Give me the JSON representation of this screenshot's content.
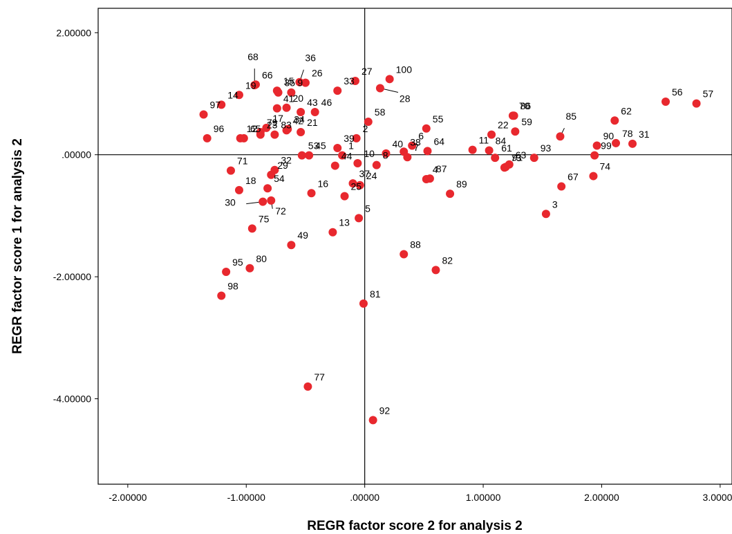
{
  "chart_data": {
    "type": "scatter",
    "title": "",
    "xlabel": "REGR factor score   2 for analysis 2",
    "ylabel": "REGR factor score   1 for analysis 2",
    "xlim": [
      -2.25,
      3.1
    ],
    "ylim": [
      -5.4,
      2.4
    ],
    "x_ticks": [
      -2,
      -1,
      0,
      1,
      2,
      3
    ],
    "y_ticks": [
      2,
      0,
      -2,
      -4
    ],
    "x_tick_labels": [
      "-2.00000",
      "-1.00000",
      ".00000",
      "1.00000",
      "2.00000",
      "3.00000"
    ],
    "y_tick_labels": [
      "2.00000",
      ".00000",
      "-2.00000",
      "-4.00000"
    ],
    "reference_lines": {
      "x": 0,
      "y": 0
    },
    "grid": false,
    "marker_color": "#e8282e",
    "points": [
      {
        "label": "1",
        "x": -0.19,
        "y": -0.01
      },
      {
        "label": "2",
        "x": -0.07,
        "y": 0.27
      },
      {
        "label": "3",
        "x": 1.53,
        "y": -0.97
      },
      {
        "label": "4",
        "x": 0.52,
        "y": -0.4
      },
      {
        "label": "5",
        "x": -0.05,
        "y": -1.04
      },
      {
        "label": "6",
        "x": 0.4,
        "y": 0.15
      },
      {
        "label": "7",
        "x": 0.36,
        "y": -0.04
      },
      {
        "label": "8",
        "x": 0.1,
        "y": -0.17
      },
      {
        "label": "9",
        "x": -0.62,
        "y": 1.02
      },
      {
        "label": "10",
        "x": -0.06,
        "y": -0.14
      },
      {
        "label": "11",
        "x": 0.91,
        "y": 0.08
      },
      {
        "label": "12",
        "x": -1.05,
        "y": 0.27
      },
      {
        "label": "13",
        "x": -0.27,
        "y": -1.27
      },
      {
        "label": "14",
        "x": -1.21,
        "y": 0.82
      },
      {
        "label": "15",
        "x": -0.74,
        "y": 1.05
      },
      {
        "label": "16",
        "x": -0.45,
        "y": -0.63
      },
      {
        "label": "17",
        "x": -0.83,
        "y": 0.44
      },
      {
        "label": "18",
        "x": -1.06,
        "y": -0.58
      },
      {
        "label": "19",
        "x": -1.06,
        "y": 0.98
      },
      {
        "label": "20",
        "x": -0.66,
        "y": 0.77
      },
      {
        "label": "21",
        "x": -0.54,
        "y": 0.37
      },
      {
        "label": "22",
        "x": 1.07,
        "y": 0.33
      },
      {
        "label": "23",
        "x": -0.88,
        "y": 0.33
      },
      {
        "label": "24",
        "x": -0.04,
        "y": -0.5
      },
      {
        "label": "25",
        "x": -0.17,
        "y": -0.68
      },
      {
        "label": "26",
        "x": -0.5,
        "y": 1.18
      },
      {
        "label": "27",
        "x": -0.08,
        "y": 1.21
      },
      {
        "label": "28",
        "x": 0.13,
        "y": 1.09
      },
      {
        "label": "29",
        "x": -0.79,
        "y": -0.33
      },
      {
        "label": "30",
        "x": -0.86,
        "y": -0.77
      },
      {
        "label": "31",
        "x": 2.26,
        "y": 0.18
      },
      {
        "label": "32",
        "x": -0.76,
        "y": -0.25
      },
      {
        "label": "33",
        "x": -0.23,
        "y": 1.05
      },
      {
        "label": "34",
        "x": -0.65,
        "y": 0.42
      },
      {
        "label": "35",
        "x": -0.73,
        "y": 1.02
      },
      {
        "label": "36",
        "x": -0.55,
        "y": 1.19
      },
      {
        "label": "37",
        "x": -0.1,
        "y": -0.47
      },
      {
        "label": "38",
        "x": 0.33,
        "y": 0.05
      },
      {
        "label": "39",
        "x": -0.23,
        "y": 0.11
      },
      {
        "label": "40",
        "x": 0.18,
        "y": 0.02
      },
      {
        "label": "41",
        "x": -0.74,
        "y": 0.76
      },
      {
        "label": "42",
        "x": -0.66,
        "y": 0.4
      },
      {
        "label": "43",
        "x": -0.54,
        "y": 0.7
      },
      {
        "label": "44",
        "x": -0.25,
        "y": -0.18
      },
      {
        "label": "45",
        "x": -0.47,
        "y": -0.01
      },
      {
        "label": "46",
        "x": -0.42,
        "y": 0.7
      },
      {
        "label": "49",
        "x": -0.62,
        "y": -1.48
      },
      {
        "label": "53",
        "x": -0.53,
        "y": -0.01
      },
      {
        "label": "54",
        "x": -0.82,
        "y": -0.55
      },
      {
        "label": "55",
        "x": 0.52,
        "y": 0.43
      },
      {
        "label": "56",
        "x": 2.54,
        "y": 0.87
      },
      {
        "label": "57",
        "x": 2.8,
        "y": 0.84
      },
      {
        "label": "58",
        "x": 0.03,
        "y": 0.54
      },
      {
        "label": "59",
        "x": 1.27,
        "y": 0.38
      },
      {
        "label": "61",
        "x": 1.1,
        "y": -0.05
      },
      {
        "label": "62",
        "x": 2.11,
        "y": 0.56
      },
      {
        "label": "63",
        "x": 1.22,
        "y": -0.16
      },
      {
        "label": "64",
        "x": 0.53,
        "y": 0.06
      },
      {
        "label": "65",
        "x": -1.02,
        "y": 0.27
      },
      {
        "label": "66",
        "x": -0.92,
        "y": 1.15
      },
      {
        "label": "67",
        "x": 1.66,
        "y": -0.52
      },
      {
        "label": "68",
        "x": -0.93,
        "y": 1.14
      },
      {
        "label": "70",
        "x": 1.25,
        "y": 0.64
      },
      {
        "label": "71",
        "x": -1.13,
        "y": -0.26
      },
      {
        "label": "72",
        "x": -0.79,
        "y": -0.75
      },
      {
        "label": "73",
        "x": 1.18,
        "y": -0.21
      },
      {
        "label": "74",
        "x": 1.93,
        "y": -0.35
      },
      {
        "label": "75",
        "x": -0.95,
        "y": -1.21
      },
      {
        "label": "77",
        "x": -0.48,
        "y": -3.8
      },
      {
        "label": "78",
        "x": 2.12,
        "y": 0.19
      },
      {
        "label": "79",
        "x": -0.88,
        "y": 0.37
      },
      {
        "label": "80",
        "x": -0.97,
        "y": -1.86
      },
      {
        "label": "81",
        "x": -0.01,
        "y": -2.44
      },
      {
        "label": "82",
        "x": 0.6,
        "y": -1.89
      },
      {
        "label": "83",
        "x": -0.76,
        "y": 0.33
      },
      {
        "label": "84",
        "x": 1.05,
        "y": 0.07
      },
      {
        "label": "85",
        "x": 1.65,
        "y": 0.3
      },
      {
        "label": "86",
        "x": 1.26,
        "y": 0.64
      },
      {
        "label": "87",
        "x": 0.55,
        "y": -0.39
      },
      {
        "label": "88",
        "x": 0.33,
        "y": -1.63
      },
      {
        "label": "89",
        "x": 0.72,
        "y": -0.64
      },
      {
        "label": "90",
        "x": 1.96,
        "y": 0.15
      },
      {
        "label": "91",
        "x": 1.19,
        "y": -0.2
      },
      {
        "label": "92",
        "x": 0.07,
        "y": -4.35
      },
      {
        "label": "93",
        "x": 1.43,
        "y": -0.05
      },
      {
        "label": "95",
        "x": -1.17,
        "y": -1.92
      },
      {
        "label": "96",
        "x": -1.33,
        "y": 0.27
      },
      {
        "label": "97",
        "x": -1.36,
        "y": 0.66
      },
      {
        "label": "98",
        "x": -1.21,
        "y": -2.31
      },
      {
        "label": "99",
        "x": 1.94,
        "y": -0.01
      },
      {
        "label": "100",
        "x": 0.21,
        "y": 1.24
      }
    ]
  }
}
